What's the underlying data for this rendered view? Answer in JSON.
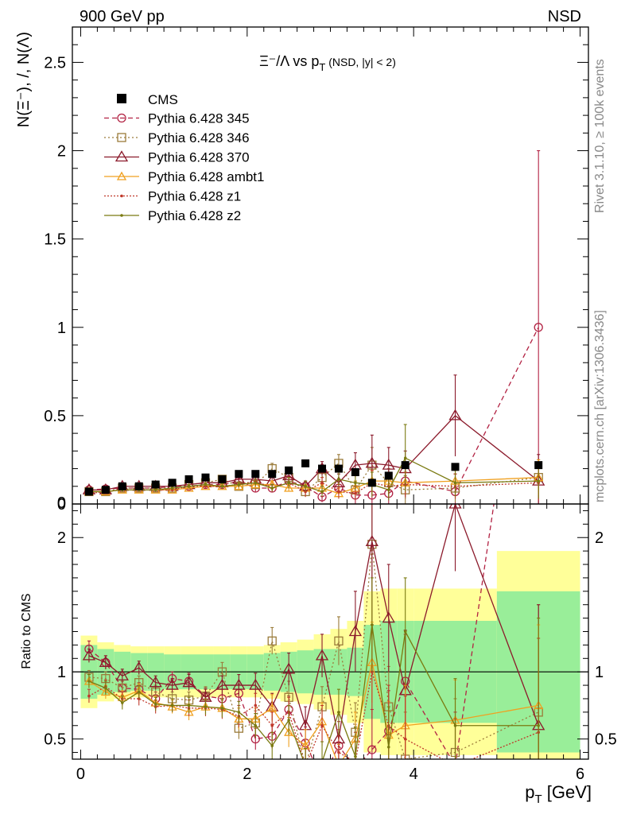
{
  "header": {
    "left": "900 GeV pp",
    "right": "NSD"
  },
  "side_labels": {
    "top": "Rivet 3.1.10, ≥ 100k events",
    "bottom": "mcplots.cern.ch [arXiv:1306.3436]"
  },
  "chart_data": {
    "type": "line",
    "title": "Ξ⁻/Λ  vs p_T (NSD, |y| < 2)",
    "title_parts": {
      "main": "Ξ⁻/Λ  vs p",
      "sub": "T",
      "tail": " (NSD, |y| < 2)"
    },
    "ylabel_main": "N(Ξ⁻), /, N(Λ)",
    "ylabel_ratio": "Ratio to CMS",
    "xlabel": "p_T [GeV]",
    "xlabel_parts": {
      "main": "p",
      "sub": "T",
      "tail": " [GeV]"
    },
    "xlim": [
      -0.1,
      6.1
    ],
    "ylim_main": [
      0,
      2.7
    ],
    "ylim_ratio": [
      0.35,
      2.25
    ],
    "xticks": [
      0,
      2,
      4,
      6
    ],
    "yticks_main": [
      0,
      0.5,
      1,
      1.5,
      2,
      2.5
    ],
    "yticks_ratio": [
      0.5,
      1,
      2
    ],
    "legend_position": "top-left",
    "cms": {
      "name": "CMS",
      "x": [
        0.1,
        0.3,
        0.5,
        0.7,
        0.9,
        1.1,
        1.3,
        1.5,
        1.7,
        1.9,
        2.1,
        2.3,
        2.5,
        2.7,
        2.9,
        3.1,
        3.3,
        3.5,
        3.7,
        3.9,
        4.5,
        5.5
      ],
      "y": [
        0.07,
        0.08,
        0.1,
        0.1,
        0.11,
        0.12,
        0.14,
        0.15,
        0.14,
        0.17,
        0.17,
        0.17,
        0.19,
        0.23,
        0.2,
        0.2,
        0.18,
        0.12,
        0.16,
        0.22,
        0.21,
        0.22
      ],
      "bins": [
        [
          0,
          0.2
        ],
        [
          0.2,
          0.4
        ],
        [
          0.4,
          0.6
        ],
        [
          0.6,
          0.8
        ],
        [
          0.8,
          1.0
        ],
        [
          1.0,
          1.2
        ],
        [
          1.2,
          1.4
        ],
        [
          1.4,
          1.6
        ],
        [
          1.6,
          1.8
        ],
        [
          1.8,
          2.0
        ],
        [
          2.0,
          2.2
        ],
        [
          2.2,
          2.4
        ],
        [
          2.4,
          2.6
        ],
        [
          2.6,
          2.8
        ],
        [
          2.8,
          3.0
        ],
        [
          3.0,
          3.2
        ],
        [
          3.2,
          3.4
        ],
        [
          3.4,
          3.6
        ],
        [
          3.6,
          3.8
        ],
        [
          3.8,
          4.0
        ],
        [
          4.0,
          5.0
        ],
        [
          5.0,
          6.0
        ]
      ],
      "band_stat": [
        0.2,
        0.17,
        0.15,
        0.14,
        0.14,
        0.13,
        0.13,
        0.13,
        0.13,
        0.13,
        0.13,
        0.14,
        0.15,
        0.16,
        0.17,
        0.17,
        0.18,
        0.35,
        0.38,
        0.38,
        0.38,
        0.6
      ],
      "band_tot": [
        0.27,
        0.22,
        0.2,
        0.19,
        0.19,
        0.19,
        0.19,
        0.19,
        0.19,
        0.19,
        0.19,
        0.2,
        0.22,
        0.24,
        0.28,
        0.32,
        0.38,
        0.6,
        0.62,
        0.62,
        0.62,
        0.9
      ]
    },
    "series": [
      {
        "name": "Pythia 6.428 345",
        "color": "#b22243",
        "dash": "6,4",
        "marker": "circle",
        "x": [
          0.1,
          0.3,
          0.5,
          0.7,
          0.9,
          1.1,
          1.3,
          1.5,
          1.7,
          1.9,
          2.1,
          2.3,
          2.5,
          2.7,
          2.9,
          3.1,
          3.3,
          3.5,
          3.7,
          3.9,
          4.5,
          5.5
        ],
        "y": [
          0.08,
          0.085,
          0.09,
          0.09,
          0.09,
          0.1,
          0.1,
          0.11,
          0.11,
          0.13,
          0.09,
          0.09,
          0.13,
          0.1,
          0.04,
          0.09,
          0.05,
          0.05,
          0.06,
          0.13,
          0.07,
          1.0
        ],
        "ratio": [
          1.17,
          1.07,
          0.88,
          0.87,
          0.8,
          0.95,
          0.93,
          0.82,
          0.8,
          0.84,
          0.5,
          0.52,
          0.72,
          0.47,
          0.2,
          0.45,
          0.28,
          0.42,
          0.56,
          0.93,
          0.3,
          4.5
        ],
        "err": [
          0.06,
          0.05,
          0.05,
          0.05,
          0.05,
          0.05,
          0.06,
          0.06,
          0.07,
          0.07,
          0.08,
          0.09,
          0.1,
          0.12,
          0.14,
          0.18,
          0.2,
          0.3,
          0.3,
          0.35,
          0.4,
          2.0
        ],
        "err_main": [
          0.01,
          0.01,
          0.01,
          0.01,
          0.01,
          0.01,
          0.01,
          0.01,
          0.015,
          0.015,
          0.02,
          0.02,
          0.03,
          0.03,
          0.03,
          0.04,
          0.05,
          0.07,
          0.08,
          0.1,
          0.1,
          1.0
        ]
      },
      {
        "name": "Pythia 6.428 346",
        "color": "#9a7b3a",
        "dash": "2,3",
        "marker": "square",
        "x": [
          0.1,
          0.3,
          0.5,
          0.7,
          0.9,
          1.1,
          1.3,
          1.5,
          1.7,
          1.9,
          2.1,
          2.3,
          2.5,
          2.7,
          2.9,
          3.1,
          3.3,
          3.5,
          3.7,
          3.9,
          4.5,
          5.5
        ],
        "y": [
          0.07,
          0.07,
          0.09,
          0.09,
          0.09,
          0.09,
          0.11,
          0.12,
          0.14,
          0.1,
          0.11,
          0.2,
          0.15,
          0.07,
          0.15,
          0.23,
          0.08,
          0.22,
          0.12,
          0.08,
          0.09,
          0.15
        ],
        "ratio": [
          0.96,
          0.95,
          0.88,
          0.92,
          0.85,
          0.8,
          0.79,
          0.82,
          1.0,
          0.58,
          0.62,
          1.23,
          0.81,
          0.3,
          0.74,
          1.23,
          0.55,
          1.95,
          0.74,
          0.35,
          0.4,
          0.7
        ],
        "err": [
          0.05,
          0.05,
          0.05,
          0.05,
          0.05,
          0.05,
          0.06,
          0.07,
          0.07,
          0.08,
          0.09,
          0.1,
          0.12,
          0.13,
          0.15,
          0.18,
          0.22,
          0.35,
          0.3,
          0.35,
          0.4,
          0.8
        ],
        "err_main": [
          0.01,
          0.01,
          0.01,
          0.01,
          0.01,
          0.01,
          0.01,
          0.015,
          0.015,
          0.015,
          0.02,
          0.03,
          0.03,
          0.03,
          0.03,
          0.05,
          0.05,
          0.1,
          0.08,
          0.08,
          0.08,
          0.1
        ]
      },
      {
        "name": "Pythia 6.428 370",
        "color": "#8b1a2b",
        "dash": "",
        "marker": "triangle",
        "x": [
          0.1,
          0.3,
          0.5,
          0.7,
          0.9,
          1.1,
          1.3,
          1.5,
          1.7,
          1.9,
          2.1,
          2.3,
          2.5,
          2.7,
          2.9,
          3.1,
          3.3,
          3.5,
          3.7,
          3.9,
          4.5,
          5.5
        ],
        "y": [
          0.08,
          0.08,
          0.1,
          0.1,
          0.1,
          0.1,
          0.11,
          0.12,
          0.12,
          0.14,
          0.14,
          0.13,
          0.16,
          0.1,
          0.2,
          0.12,
          0.22,
          0.23,
          0.22,
          0.2,
          0.5,
          0.13
        ],
        "ratio": [
          1.12,
          1.07,
          0.97,
          1.03,
          0.92,
          0.9,
          0.92,
          0.81,
          0.9,
          0.9,
          0.9,
          0.74,
          1.02,
          0.6,
          1.12,
          0.5,
          1.3,
          1.97,
          1.4,
          0.86,
          2.25,
          0.6
        ],
        "err": [
          0.05,
          0.05,
          0.05,
          0.05,
          0.05,
          0.05,
          0.06,
          0.06,
          0.07,
          0.08,
          0.09,
          0.1,
          0.12,
          0.14,
          0.16,
          0.2,
          0.3,
          0.6,
          0.4,
          0.45,
          0.5,
          0.9
        ],
        "err_main": [
          0.01,
          0.01,
          0.01,
          0.01,
          0.01,
          0.01,
          0.01,
          0.015,
          0.015,
          0.015,
          0.02,
          0.03,
          0.03,
          0.03,
          0.04,
          0.05,
          0.07,
          0.16,
          0.1,
          0.1,
          0.23,
          0.15
        ]
      },
      {
        "name": "Pythia 6.428 ambt1",
        "color": "#f0a020",
        "dash": "",
        "marker": "triangle-small",
        "x": [
          0.1,
          0.3,
          0.5,
          0.7,
          0.9,
          1.1,
          1.3,
          1.5,
          1.7,
          1.9,
          2.1,
          2.3,
          2.5,
          2.7,
          2.9,
          3.1,
          3.3,
          3.5,
          3.7,
          3.9,
          4.5,
          5.5
        ],
        "y": [
          0.07,
          0.07,
          0.08,
          0.08,
          0.08,
          0.08,
          0.09,
          0.1,
          0.1,
          0.1,
          0.11,
          0.11,
          0.09,
          0.09,
          0.09,
          0.06,
          0.09,
          0.13,
          0.13,
          0.12,
          0.13,
          0.15
        ],
        "ratio": [
          0.93,
          0.85,
          0.81,
          0.86,
          0.77,
          0.74,
          0.7,
          0.74,
          0.73,
          0.65,
          0.65,
          0.73,
          0.55,
          0.45,
          0.63,
          0.3,
          0.5,
          1.07,
          0.53,
          0.6,
          0.64,
          0.75
        ],
        "err": [
          0.05,
          0.05,
          0.05,
          0.05,
          0.05,
          0.05,
          0.06,
          0.06,
          0.07,
          0.08,
          0.08,
          0.1,
          0.11,
          0.12,
          0.14,
          0.16,
          0.2,
          0.3,
          0.25,
          0.3,
          0.3,
          0.6
        ],
        "err_main": [
          0.01,
          0.01,
          0.01,
          0.01,
          0.01,
          0.01,
          0.01,
          0.01,
          0.015,
          0.015,
          0.02,
          0.02,
          0.02,
          0.02,
          0.02,
          0.03,
          0.04,
          0.06,
          0.05,
          0.06,
          0.06,
          0.1
        ]
      },
      {
        "name": "Pythia 6.428 z1",
        "color": "#c0392b",
        "dash": "2,2",
        "marker": "dot",
        "x": [
          0.1,
          0.3,
          0.5,
          0.7,
          0.9,
          1.1,
          1.3,
          1.5,
          1.7,
          1.9,
          2.1,
          2.3,
          2.5,
          2.7,
          2.9,
          3.1,
          3.3,
          3.5,
          3.7,
          3.9,
          4.5,
          5.5
        ],
        "y": [
          0.06,
          0.07,
          0.08,
          0.08,
          0.08,
          0.08,
          0.1,
          0.1,
          0.1,
          0.11,
          0.13,
          0.09,
          0.12,
          0.07,
          0.12,
          0.07,
          0.06,
          0.12,
          0.1,
          0.11,
          0.1,
          0.12
        ],
        "ratio": [
          0.82,
          0.89,
          0.8,
          0.8,
          0.74,
          0.75,
          0.73,
          0.73,
          0.72,
          0.67,
          0.75,
          0.6,
          0.7,
          0.3,
          0.6,
          0.4,
          0.33,
          1.0,
          0.6,
          0.5,
          0.3,
          0.55
        ],
        "err": [
          0.05,
          0.05,
          0.05,
          0.05,
          0.05,
          0.05,
          0.06,
          0.06,
          0.07,
          0.08,
          0.09,
          0.1,
          0.11,
          0.13,
          0.15,
          0.17,
          0.22,
          0.35,
          0.3,
          0.32,
          0.35,
          0.7
        ],
        "err_main": [
          0.01,
          0.01,
          0.01,
          0.01,
          0.01,
          0.01,
          0.01,
          0.01,
          0.015,
          0.015,
          0.02,
          0.02,
          0.03,
          0.03,
          0.03,
          0.04,
          0.04,
          0.07,
          0.06,
          0.07,
          0.07,
          0.1
        ]
      },
      {
        "name": "Pythia 6.428 z2",
        "color": "#7a7a10",
        "dash": "",
        "marker": "dot",
        "x": [
          0.1,
          0.3,
          0.5,
          0.7,
          0.9,
          1.1,
          1.3,
          1.5,
          1.7,
          1.9,
          2.1,
          2.3,
          2.5,
          2.7,
          2.9,
          3.1,
          3.3,
          3.5,
          3.7,
          3.9,
          4.5,
          5.5
        ],
        "y": [
          0.07,
          0.07,
          0.08,
          0.08,
          0.08,
          0.09,
          0.1,
          0.11,
          0.1,
          0.11,
          0.12,
          0.09,
          0.12,
          0.1,
          0.07,
          0.14,
          0.12,
          0.11,
          0.08,
          0.26,
          0.12,
          0.13
        ],
        "ratio": [
          0.93,
          0.88,
          0.77,
          0.85,
          0.76,
          0.75,
          0.75,
          0.74,
          0.73,
          0.7,
          0.6,
          0.45,
          0.64,
          0.3,
          0.33,
          0.7,
          0.37,
          1.35,
          0.44,
          1.3,
          0.6,
          0.6
        ],
        "err": [
          0.05,
          0.05,
          0.05,
          0.05,
          0.05,
          0.05,
          0.06,
          0.06,
          0.07,
          0.08,
          0.09,
          0.1,
          0.11,
          0.13,
          0.15,
          0.17,
          0.22,
          0.35,
          0.3,
          0.4,
          0.35,
          0.8
        ],
        "err_main": [
          0.01,
          0.01,
          0.01,
          0.01,
          0.01,
          0.01,
          0.01,
          0.01,
          0.015,
          0.015,
          0.02,
          0.02,
          0.03,
          0.03,
          0.03,
          0.04,
          0.04,
          0.07,
          0.06,
          0.19,
          0.08,
          0.1
        ]
      }
    ]
  }
}
